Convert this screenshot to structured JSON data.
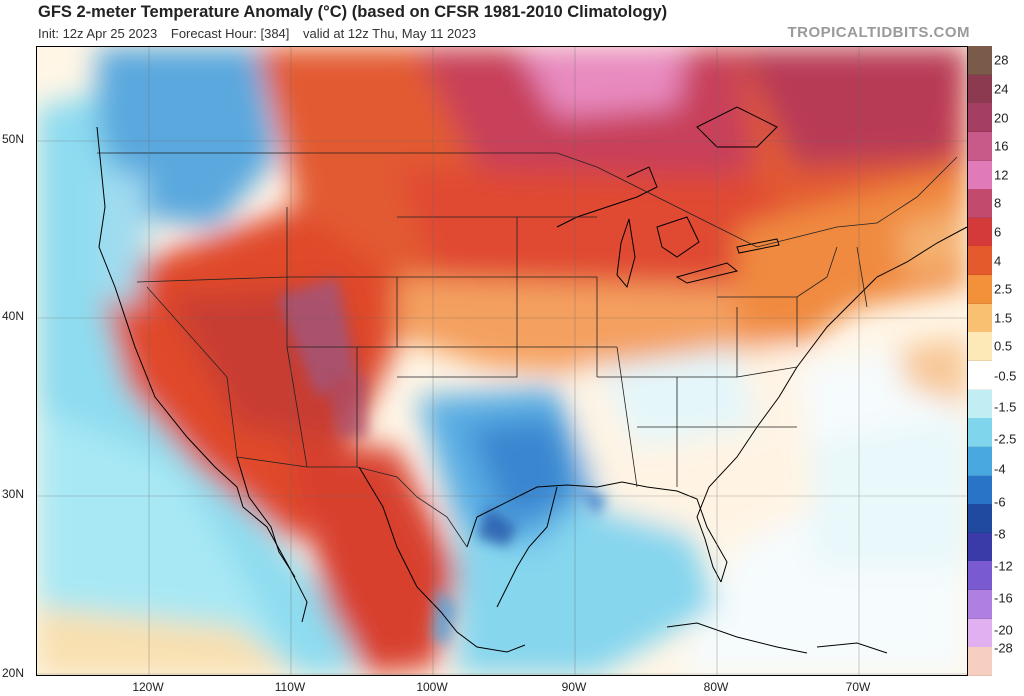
{
  "header": {
    "title": "GFS 2-meter Temperature Anomaly (°C) (based on CFSR 1981-2010 Climatology)",
    "init": "Init: 12z Apr 25 2023",
    "forecast_hour": "Forecast Hour: [384]",
    "valid": "valid at 12z Thu, May 11 2023",
    "brand": "TROPICALTIDBITS.COM"
  },
  "map": {
    "lat_labels": [
      "50N",
      "40N",
      "30N",
      "20N"
    ],
    "lon_labels": [
      "120W",
      "110W",
      "100W",
      "90W",
      "80W",
      "70W"
    ]
  },
  "colorbar": {
    "labels": [
      "28",
      "24",
      "20",
      "16",
      "12",
      "8",
      "6",
      "4",
      "2.5",
      "1.5",
      "0.5",
      "-0.5",
      "-1.5",
      "-2.5",
      "-4",
      "-6",
      "-8",
      "-12",
      "-16",
      "-20",
      "-28"
    ],
    "colors": [
      "#7a5a48",
      "#8c3a50",
      "#a43e62",
      "#c85a8a",
      "#e07ab8",
      "#c24a6c",
      "#d53a3a",
      "#e55a2c",
      "#f2913a",
      "#f8c070",
      "#fde8b8",
      "#ffffff",
      "#c0eef2",
      "#7fd6ec",
      "#4aa8e0",
      "#2a74c8",
      "#1f4aa0",
      "#3a3aa8",
      "#7a5ad0",
      "#b080e0",
      "#e0b0f0",
      "#f6cfc0"
    ]
  }
}
